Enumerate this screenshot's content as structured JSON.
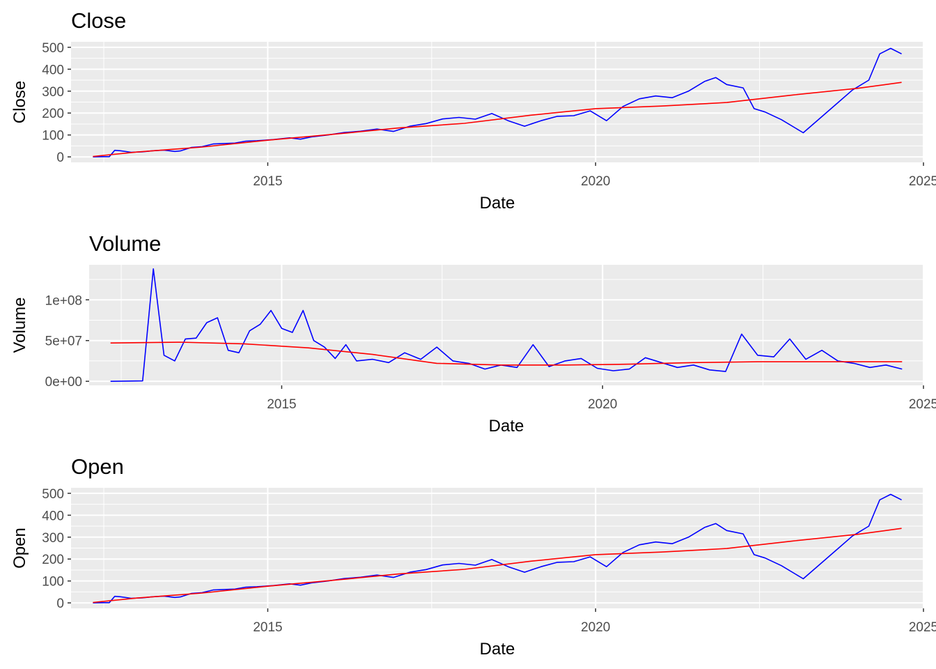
{
  "chart_data": [
    {
      "type": "line",
      "title": "Close",
      "xlabel": "Date",
      "ylabel": "Close",
      "xlim": [
        "2012-01-01",
        "2025-01-01"
      ],
      "ylim": [
        -25,
        525
      ],
      "x_ticks": [
        "2015",
        "2020",
        "2025"
      ],
      "y_ticks": [
        "0",
        "100",
        "200",
        "300",
        "400",
        "500"
      ],
      "grid": true,
      "legend": "none",
      "series": [
        {
          "color": "#0000ff",
          "points": [
            [
              "2012-05",
              0
            ],
            [
              "2012-07",
              1
            ],
            [
              "2012-08",
              1
            ],
            [
              "2012-09",
              30
            ],
            [
              "2012-10",
              28
            ],
            [
              "2012-12",
              21
            ],
            [
              "2013-02",
              23
            ],
            [
              "2013-04",
              28
            ],
            [
              "2013-06",
              31
            ],
            [
              "2013-08",
              25
            ],
            [
              "2013-09",
              27
            ],
            [
              "2013-11",
              43
            ],
            [
              "2014-01",
              47
            ],
            [
              "2014-03",
              59
            ],
            [
              "2014-05",
              61
            ],
            [
              "2014-07",
              63
            ],
            [
              "2014-09",
              72
            ],
            [
              "2014-11",
              74
            ],
            [
              "2015-02",
              79
            ],
            [
              "2015-05",
              87
            ],
            [
              "2015-07",
              81
            ],
            [
              "2015-09",
              91
            ],
            [
              "2015-12",
              100
            ],
            [
              "2016-03",
              111
            ],
            [
              "2016-06",
              117
            ],
            [
              "2016-09",
              127
            ],
            [
              "2016-12",
              116
            ],
            [
              "2017-03",
              140
            ],
            [
              "2017-06",
              152
            ],
            [
              "2017-09",
              173
            ],
            [
              "2017-12",
              180
            ],
            [
              "2018-03",
              172
            ],
            [
              "2018-06",
              198
            ],
            [
              "2018-09",
              165
            ],
            [
              "2018-12",
              140
            ],
            [
              "2019-03",
              165
            ],
            [
              "2019-06",
              185
            ],
            [
              "2019-09",
              188
            ],
            [
              "2019-12",
              210
            ],
            [
              "2020-03",
              165
            ],
            [
              "2020-06",
              230
            ],
            [
              "2020-09",
              265
            ],
            [
              "2020-12",
              278
            ],
            [
              "2021-03",
              270
            ],
            [
              "2021-06",
              300
            ],
            [
              "2021-09",
              345
            ],
            [
              "2021-11",
              362
            ],
            [
              "2022-01",
              330
            ],
            [
              "2022-04",
              315
            ],
            [
              "2022-06",
              220
            ],
            [
              "2022-08",
              205
            ],
            [
              "2022-11",
              170
            ],
            [
              "2023-03",
              110
            ],
            [
              "2023-06",
              175
            ],
            [
              "2023-09",
              240
            ],
            [
              "2023-12",
              305
            ],
            [
              "2024-03",
              350
            ],
            [
              "2024-05",
              470
            ],
            [
              "2024-07",
              495
            ],
            [
              "2024-09",
              470
            ]
          ]
        },
        {
          "color": "#ff0000",
          "points": [
            [
              "2012-05",
              2
            ],
            [
              "2013-01",
              22
            ],
            [
              "2014-01",
              45
            ],
            [
              "2015-01",
              76
            ],
            [
              "2016-01",
              103
            ],
            [
              "2017-01",
              132
            ],
            [
              "2018-01",
              153
            ],
            [
              "2019-01",
              190
            ],
            [
              "2020-01",
              220
            ],
            [
              "2021-01",
              232
            ],
            [
              "2022-01",
              248
            ],
            [
              "2023-01",
              282
            ],
            [
              "2024-01",
              313
            ],
            [
              "2024-09",
              340
            ]
          ]
        }
      ]
    },
    {
      "type": "line",
      "title": "Volume",
      "xlabel": "Date",
      "ylabel": "Volume",
      "xlim": [
        "2012-01-01",
        "2025-01-01"
      ],
      "ylim": [
        -5000000,
        143000000
      ],
      "x_ticks": [
        "2015",
        "2020",
        "2025"
      ],
      "y_ticks": [
        "0e+00",
        "5e+07",
        "1e+08"
      ],
      "grid": true,
      "legend": "none",
      "series": [
        {
          "color": "#0000ff",
          "points": [
            [
              "2012-05",
              0
            ],
            [
              "2012-11",
              500000
            ],
            [
              "2013-01",
              138000000
            ],
            [
              "2013-03",
              32000000
            ],
            [
              "2013-05",
              25000000
            ],
            [
              "2013-07",
              52000000
            ],
            [
              "2013-09",
              53000000
            ],
            [
              "2013-11",
              72000000
            ],
            [
              "2014-01",
              78000000
            ],
            [
              "2014-03",
              38000000
            ],
            [
              "2014-05",
              35000000
            ],
            [
              "2014-07",
              62000000
            ],
            [
              "2014-09",
              70000000
            ],
            [
              "2014-11",
              87000000
            ],
            [
              "2015-01",
              65000000
            ],
            [
              "2015-03",
              60000000
            ],
            [
              "2015-05",
              87000000
            ],
            [
              "2015-07",
              50000000
            ],
            [
              "2015-09",
              42000000
            ],
            [
              "2015-11",
              28000000
            ],
            [
              "2016-01",
              45000000
            ],
            [
              "2016-03",
              25000000
            ],
            [
              "2016-06",
              27000000
            ],
            [
              "2016-09",
              23000000
            ],
            [
              "2016-12",
              35000000
            ],
            [
              "2017-03",
              27000000
            ],
            [
              "2017-06",
              42000000
            ],
            [
              "2017-09",
              25000000
            ],
            [
              "2017-12",
              22000000
            ],
            [
              "2018-03",
              15000000
            ],
            [
              "2018-06",
              20000000
            ],
            [
              "2018-09",
              17000000
            ],
            [
              "2018-12",
              45000000
            ],
            [
              "2019-03",
              18000000
            ],
            [
              "2019-06",
              25000000
            ],
            [
              "2019-09",
              28000000
            ],
            [
              "2019-12",
              16000000
            ],
            [
              "2020-03",
              13000000
            ],
            [
              "2020-06",
              15000000
            ],
            [
              "2020-09",
              29000000
            ],
            [
              "2020-12",
              23000000
            ],
            [
              "2021-03",
              17000000
            ],
            [
              "2021-06",
              20000000
            ],
            [
              "2021-09",
              14000000
            ],
            [
              "2021-12",
              12000000
            ],
            [
              "2022-03",
              58000000
            ],
            [
              "2022-06",
              32000000
            ],
            [
              "2022-09",
              30000000
            ],
            [
              "2022-12",
              52000000
            ],
            [
              "2023-03",
              27000000
            ],
            [
              "2023-06",
              38000000
            ],
            [
              "2023-09",
              25000000
            ],
            [
              "2023-12",
              22000000
            ],
            [
              "2024-03",
              17000000
            ],
            [
              "2024-06",
              20000000
            ],
            [
              "2024-09",
              15000000
            ]
          ]
        },
        {
          "color": "#ff0000",
          "points": [
            [
              "2012-05",
              47000000
            ],
            [
              "2013-06",
              48000000
            ],
            [
              "2014-06",
              46000000
            ],
            [
              "2015-06",
              41000000
            ],
            [
              "2016-06",
              33000000
            ],
            [
              "2017-06",
              22000000
            ],
            [
              "2018-06",
              20000000
            ],
            [
              "2019-06",
              20000000
            ],
            [
              "2020-06",
              21000000
            ],
            [
              "2021-06",
              23000000
            ],
            [
              "2022-06",
              24000000
            ],
            [
              "2023-06",
              24000000
            ],
            [
              "2024-09",
              24000000
            ]
          ]
        }
      ]
    },
    {
      "type": "line",
      "title": "Open",
      "xlabel": "Date",
      "ylabel": "Open",
      "xlim": [
        "2012-01-01",
        "2025-01-01"
      ],
      "ylim": [
        -25,
        525
      ],
      "x_ticks": [
        "2015",
        "2020",
        "2025"
      ],
      "y_ticks": [
        "0",
        "100",
        "200",
        "300",
        "400",
        "500"
      ],
      "grid": true,
      "legend": "none",
      "series": [
        {
          "color": "#0000ff",
          "points": [
            [
              "2012-05",
              0
            ],
            [
              "2012-07",
              1
            ],
            [
              "2012-08",
              1
            ],
            [
              "2012-09",
              30
            ],
            [
              "2012-10",
              28
            ],
            [
              "2012-12",
              21
            ],
            [
              "2013-02",
              23
            ],
            [
              "2013-04",
              28
            ],
            [
              "2013-06",
              31
            ],
            [
              "2013-08",
              25
            ],
            [
              "2013-09",
              27
            ],
            [
              "2013-11",
              43
            ],
            [
              "2014-01",
              47
            ],
            [
              "2014-03",
              59
            ],
            [
              "2014-05",
              61
            ],
            [
              "2014-07",
              63
            ],
            [
              "2014-09",
              72
            ],
            [
              "2014-11",
              74
            ],
            [
              "2015-02",
              79
            ],
            [
              "2015-05",
              87
            ],
            [
              "2015-07",
              81
            ],
            [
              "2015-09",
              91
            ],
            [
              "2015-12",
              100
            ],
            [
              "2016-03",
              111
            ],
            [
              "2016-06",
              117
            ],
            [
              "2016-09",
              127
            ],
            [
              "2016-12",
              116
            ],
            [
              "2017-03",
              140
            ],
            [
              "2017-06",
              152
            ],
            [
              "2017-09",
              173
            ],
            [
              "2017-12",
              180
            ],
            [
              "2018-03",
              172
            ],
            [
              "2018-06",
              198
            ],
            [
              "2018-09",
              165
            ],
            [
              "2018-12",
              140
            ],
            [
              "2019-03",
              165
            ],
            [
              "2019-06",
              185
            ],
            [
              "2019-09",
              188
            ],
            [
              "2019-12",
              210
            ],
            [
              "2020-03",
              165
            ],
            [
              "2020-06",
              230
            ],
            [
              "2020-09",
              265
            ],
            [
              "2020-12",
              278
            ],
            [
              "2021-03",
              270
            ],
            [
              "2021-06",
              300
            ],
            [
              "2021-09",
              345
            ],
            [
              "2021-11",
              362
            ],
            [
              "2022-01",
              330
            ],
            [
              "2022-04",
              315
            ],
            [
              "2022-06",
              220
            ],
            [
              "2022-08",
              205
            ],
            [
              "2022-11",
              170
            ],
            [
              "2023-03",
              110
            ],
            [
              "2023-06",
              175
            ],
            [
              "2023-09",
              240
            ],
            [
              "2023-12",
              305
            ],
            [
              "2024-03",
              350
            ],
            [
              "2024-05",
              470
            ],
            [
              "2024-07",
              495
            ],
            [
              "2024-09",
              470
            ]
          ]
        },
        {
          "color": "#ff0000",
          "points": [
            [
              "2012-05",
              2
            ],
            [
              "2013-01",
              22
            ],
            [
              "2014-01",
              45
            ],
            [
              "2015-01",
              76
            ],
            [
              "2016-01",
              103
            ],
            [
              "2017-01",
              132
            ],
            [
              "2018-01",
              153
            ],
            [
              "2019-01",
              190
            ],
            [
              "2020-01",
              220
            ],
            [
              "2021-01",
              232
            ],
            [
              "2022-01",
              248
            ],
            [
              "2023-01",
              282
            ],
            [
              "2024-01",
              313
            ],
            [
              "2024-09",
              340
            ]
          ]
        }
      ]
    }
  ]
}
